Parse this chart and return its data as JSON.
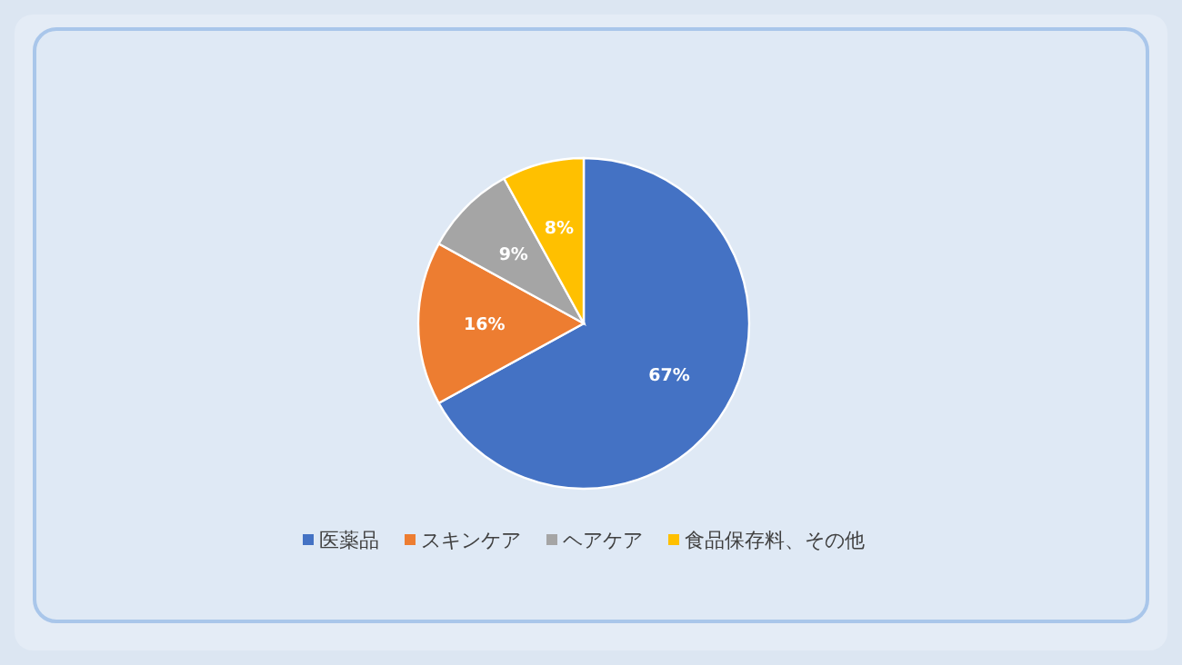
{
  "chart_data": {
    "type": "pie",
    "categories": [
      "医薬品",
      "スキンケア",
      "ヘアケア",
      "食品保存料、その他"
    ],
    "values": [
      67,
      16,
      9,
      8
    ],
    "colors": [
      "#4472c4",
      "#ed7d31",
      "#a5a5a5",
      "#ffc000"
    ],
    "value_labels": [
      "67%",
      "16%",
      "9%",
      "8%"
    ],
    "legend": "bottom"
  }
}
